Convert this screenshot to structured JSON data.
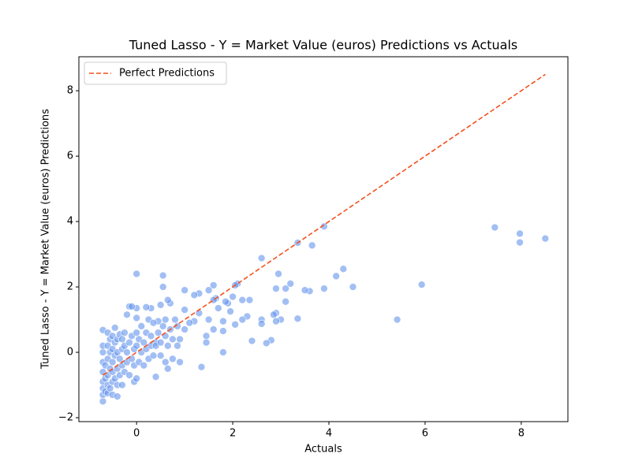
{
  "chart_data": {
    "type": "scatter",
    "title": "Tuned Lasso - Y = Market Value (euros) Predictions vs Actuals",
    "x_label": "Actuals",
    "y_label": "Tuned Lasso - Y = Market Value (euros) Predictions",
    "xlim": [
      -1.2,
      8.97
    ],
    "ylim": [
      -2.12,
      9.04
    ],
    "xticks": [
      0,
      2,
      4,
      6,
      8
    ],
    "yticks": [
      {
        "value": -2,
        "label": "−2"
      },
      0,
      2,
      4,
      6,
      8
    ],
    "legend": "upper left",
    "line": {
      "name": "Perfect Predictions",
      "color": "#f4511e",
      "x": [
        -0.7,
        8.5
      ],
      "values": [
        -0.7,
        8.5
      ]
    },
    "series": [
      {
        "color": "#6495ed",
        "x": [
          7.45,
          7.97,
          7.97,
          8.5,
          5.93,
          5.42,
          4.5,
          4.3,
          4.15,
          3.9,
          3.9,
          3.65,
          3.6,
          3.5,
          3.35,
          3.35,
          3.2,
          3.1,
          3.1,
          3.0,
          2.95,
          2.9,
          2.85,
          2.9,
          2.8,
          2.9,
          2.7,
          2.6,
          2.6,
          2.6,
          2.4,
          2.35,
          2.3,
          2.2,
          2.2,
          2.1,
          2.05,
          2.05,
          2.0,
          1.95,
          1.9,
          1.85,
          1.8,
          1.8,
          1.8,
          1.7,
          1.65,
          1.6,
          1.6,
          1.6,
          1.5,
          1.5,
          1.45,
          1.45,
          1.35,
          1.3,
          1.3,
          1.2,
          1.2,
          1.1,
          1.0,
          1.0,
          1.0,
          0.9,
          0.85,
          0.7,
          0.65,
          0.6,
          0.55,
          0.55,
          0.5,
          0.45,
          0.4,
          0.3,
          0.2,
          0.0,
          0.0,
          -0.15,
          -0.7,
          -0.7,
          -0.7,
          -0.7,
          -0.7,
          -0.7,
          -0.7,
          -0.7,
          -0.7,
          -0.65,
          -0.65,
          -0.65,
          -0.6,
          -0.6,
          -0.6,
          -0.6,
          -0.6,
          -0.6,
          -0.55,
          -0.55,
          -0.55,
          -0.55,
          -0.5,
          -0.5,
          -0.5,
          -0.5,
          -0.5,
          -0.5,
          -0.45,
          -0.45,
          -0.45,
          -0.45,
          -0.4,
          -0.4,
          -0.4,
          -0.4,
          -0.4,
          -0.35,
          -0.35,
          -0.35,
          -0.3,
          -0.3,
          -0.3,
          -0.3,
          -0.25,
          -0.25,
          -0.25,
          -0.2,
          -0.2,
          -0.2,
          -0.15,
          -0.15,
          -0.1,
          -0.1,
          -0.1,
          -0.05,
          -0.05,
          -0.05,
          0.0,
          0.0,
          0.0,
          0.0,
          0.05,
          0.05,
          0.1,
          0.1,
          0.15,
          0.15,
          0.2,
          0.2,
          0.25,
          0.25,
          0.3,
          0.3,
          0.35,
          0.35,
          0.4,
          0.4,
          0.45,
          0.5,
          0.5,
          0.55,
          0.6,
          0.6,
          0.65,
          0.65,
          0.7,
          0.75,
          0.75,
          0.8,
          0.85,
          0.9
        ],
        "values": [
          3.82,
          3.63,
          3.36,
          3.48,
          2.07,
          1.0,
          2.0,
          2.55,
          2.33,
          3.85,
          1.95,
          3.27,
          1.87,
          1.9,
          3.35,
          1.03,
          2.1,
          1.55,
          1.95,
          1.0,
          2.4,
          1.2,
          1.15,
          0.95,
          0.37,
          1.95,
          0.28,
          2.88,
          1.0,
          0.87,
          0.35,
          1.6,
          1.1,
          1.0,
          1.6,
          2.1,
          2.05,
          0.85,
          1.7,
          1.25,
          1.5,
          1.55,
          0.95,
          0.65,
          0.0,
          1.35,
          1.65,
          1.6,
          2.05,
          0.7,
          1.9,
          1.0,
          0.5,
          0.3,
          -0.45,
          1.8,
          1.2,
          1.75,
          0.95,
          0.9,
          1.9,
          1.3,
          0.7,
          0.4,
          0.8,
          1.5,
          1.6,
          1.0,
          2.35,
          2.0,
          1.45,
          0.95,
          0.3,
          1.35,
          1.38,
          2.4,
          1.35,
          1.4,
          -1.5,
          -1.3,
          -1.1,
          -0.9,
          -0.6,
          -0.3,
          0.0,
          0.2,
          0.68,
          -1.2,
          -0.8,
          -0.4,
          -1.25,
          -1.0,
          -0.7,
          -0.2,
          0.2,
          0.6,
          -1.1,
          -0.5,
          0.0,
          0.4,
          -1.3,
          -0.9,
          -0.6,
          -0.3,
          0.1,
          0.5,
          -0.8,
          -0.1,
          0.3,
          0.75,
          -1.35,
          -1.0,
          -0.5,
          0.0,
          0.4,
          -0.7,
          -0.2,
          0.55,
          -1.0,
          -0.4,
          0.1,
          0.4,
          -0.6,
          0.2,
          0.6,
          -0.3,
          0.0,
          1.15,
          -0.7,
          0.3,
          -0.2,
          0.5,
          1.4,
          -0.9,
          0.1,
          -0.4,
          -0.8,
          0.2,
          0.6,
          1.05,
          -0.3,
          0.4,
          0.0,
          0.8,
          -0.4,
          0.3,
          0.1,
          0.6,
          -0.2,
          1.0,
          0.2,
          0.5,
          -0.1,
          0.9,
          -0.75,
          0.2,
          0.6,
          -0.1,
          0.3,
          0.8,
          -0.3,
          0.5,
          -0.5,
          0.2,
          0.7,
          -0.2,
          0.4,
          1.0,
          0.2,
          -0.3
        ]
      }
    ]
  }
}
